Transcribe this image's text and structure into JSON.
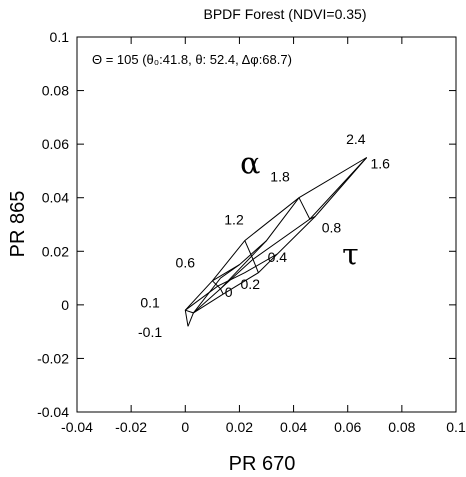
{
  "chart_data": {
    "type": "line",
    "title": "BPDF Forest  (NDVI=0.35)",
    "subtitle": "Θ = 105 (θ₀:41.8, θ: 52.4, Δφ:68.7)",
    "xlabel": "PR 670",
    "ylabel": "PR 865",
    "xlim": [
      -0.04,
      0.1
    ],
    "ylim": [
      -0.04,
      0.1
    ],
    "xticks": [
      "-0.04",
      "-0.02",
      "0",
      "0.02",
      "0.04",
      "0.06",
      "0.08",
      "0.1"
    ],
    "yticks": [
      "-0.04",
      "-0.02",
      "0",
      "0.02",
      "0.04",
      "0.06",
      "0.08",
      "0.1"
    ],
    "grid": false,
    "polylines": [
      [
        [
          0.001,
          -0.008
        ],
        [
          0.0,
          -0.002
        ],
        [
          0.01,
          0.009
        ],
        [
          0.022,
          0.024
        ],
        [
          0.042,
          0.04
        ],
        [
          0.067,
          0.055
        ]
      ],
      [
        [
          0.001,
          -0.008
        ],
        [
          0.003,
          -0.003
        ],
        [
          0.013,
          0.006
        ],
        [
          0.025,
          0.017
        ],
        [
          0.046,
          0.032
        ],
        [
          0.067,
          0.055
        ]
      ],
      [
        [
          0.0,
          -0.002
        ],
        [
          0.003,
          -0.003
        ],
        [
          0.014,
          0.004
        ],
        [
          0.027,
          0.012
        ],
        [
          0.048,
          0.033
        ],
        [
          0.067,
          0.055
        ]
      ],
      [
        [
          0.01,
          0.009
        ],
        [
          0.013,
          0.006
        ],
        [
          0.014,
          0.004
        ]
      ],
      [
        [
          0.022,
          0.024
        ],
        [
          0.025,
          0.017
        ],
        [
          0.027,
          0.012
        ]
      ],
      [
        [
          0.042,
          0.04
        ],
        [
          0.046,
          0.032
        ],
        [
          0.048,
          0.033
        ]
      ],
      [
        [
          0.003,
          -0.003
        ],
        [
          0.013,
          0.01
        ],
        [
          0.02,
          0.015
        ],
        [
          0.03,
          0.024
        ],
        [
          0.042,
          0.04
        ]
      ],
      [
        [
          0.0,
          -0.002
        ],
        [
          0.012,
          0.007
        ],
        [
          0.022,
          0.012
        ],
        [
          0.034,
          0.019
        ]
      ],
      [
        [
          0.01,
          0.009
        ],
        [
          0.02,
          0.015
        ]
      ],
      [
        [
          0.013,
          0.006
        ],
        [
          0.03,
          0.024
        ]
      ]
    ],
    "tau_labels": [
      {
        "text": "-0.1",
        "x": -0.013,
        "y": -0.012
      },
      {
        "text": "0.1",
        "x": -0.013,
        "y": -0.001
      },
      {
        "text": "0.6",
        "x": 0.0,
        "y": 0.014
      },
      {
        "text": "0",
        "x": 0.016,
        "y": 0.003
      },
      {
        "text": "0.2",
        "x": 0.024,
        "y": 0.006
      },
      {
        "text": "0.4",
        "x": 0.034,
        "y": 0.016
      },
      {
        "text": "0.8",
        "x": 0.054,
        "y": 0.027
      },
      {
        "text": "1.2",
        "x": 0.018,
        "y": 0.03
      },
      {
        "text": "1.8",
        "x": 0.035,
        "y": 0.046
      },
      {
        "text": "2.4",
        "x": 0.063,
        "y": 0.06
      },
      {
        "text": "1.6",
        "x": 0.072,
        "y": 0.051
      }
    ],
    "symbols": [
      {
        "text": "α",
        "x": 0.024,
        "y": 0.049
      },
      {
        "text": "τ",
        "x": 0.061,
        "y": 0.015
      }
    ]
  }
}
